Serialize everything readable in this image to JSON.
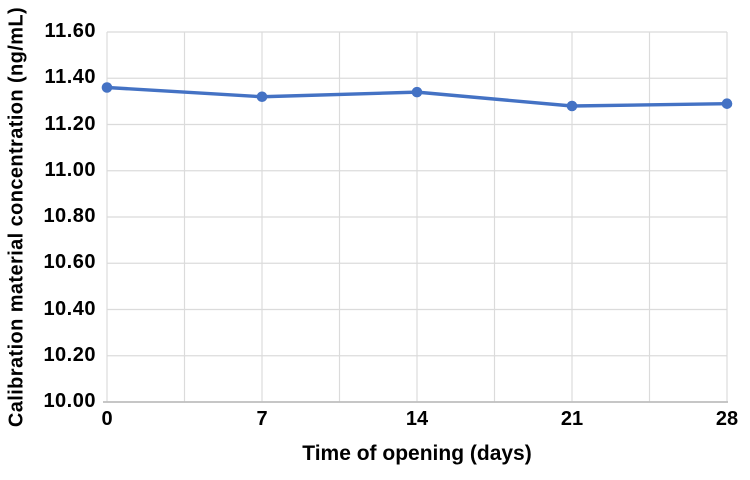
{
  "chart_data": {
    "type": "line",
    "title": "",
    "xlabel": "Time of opening (days)",
    "ylabel": "Calibration material concentration (ng/mL)",
    "x": [
      0,
      7,
      14,
      21,
      28
    ],
    "values": [
      11.36,
      11.32,
      11.34,
      11.28,
      11.29
    ],
    "xlim": [
      0,
      28
    ],
    "ylim": [
      10.0,
      11.6
    ],
    "y_tick_step": 0.2,
    "x_tick_step": 7,
    "x_grid_step": 3.5,
    "y_tick_labels": [
      "10.00",
      "10.20",
      "10.40",
      "10.60",
      "10.80",
      "11.00",
      "11.20",
      "11.40",
      "11.60"
    ],
    "x_tick_labels": [
      "0",
      "7",
      "14",
      "21",
      "28"
    ],
    "grid": true,
    "legend_position": "none",
    "marker": "circle",
    "colors": {
      "line": "#4472C4",
      "marker": "#4472C4",
      "gridline": "#DBDBDB",
      "axis_line": "#BFBFBF",
      "text": "#000000",
      "background": "#FFFFFF"
    }
  }
}
